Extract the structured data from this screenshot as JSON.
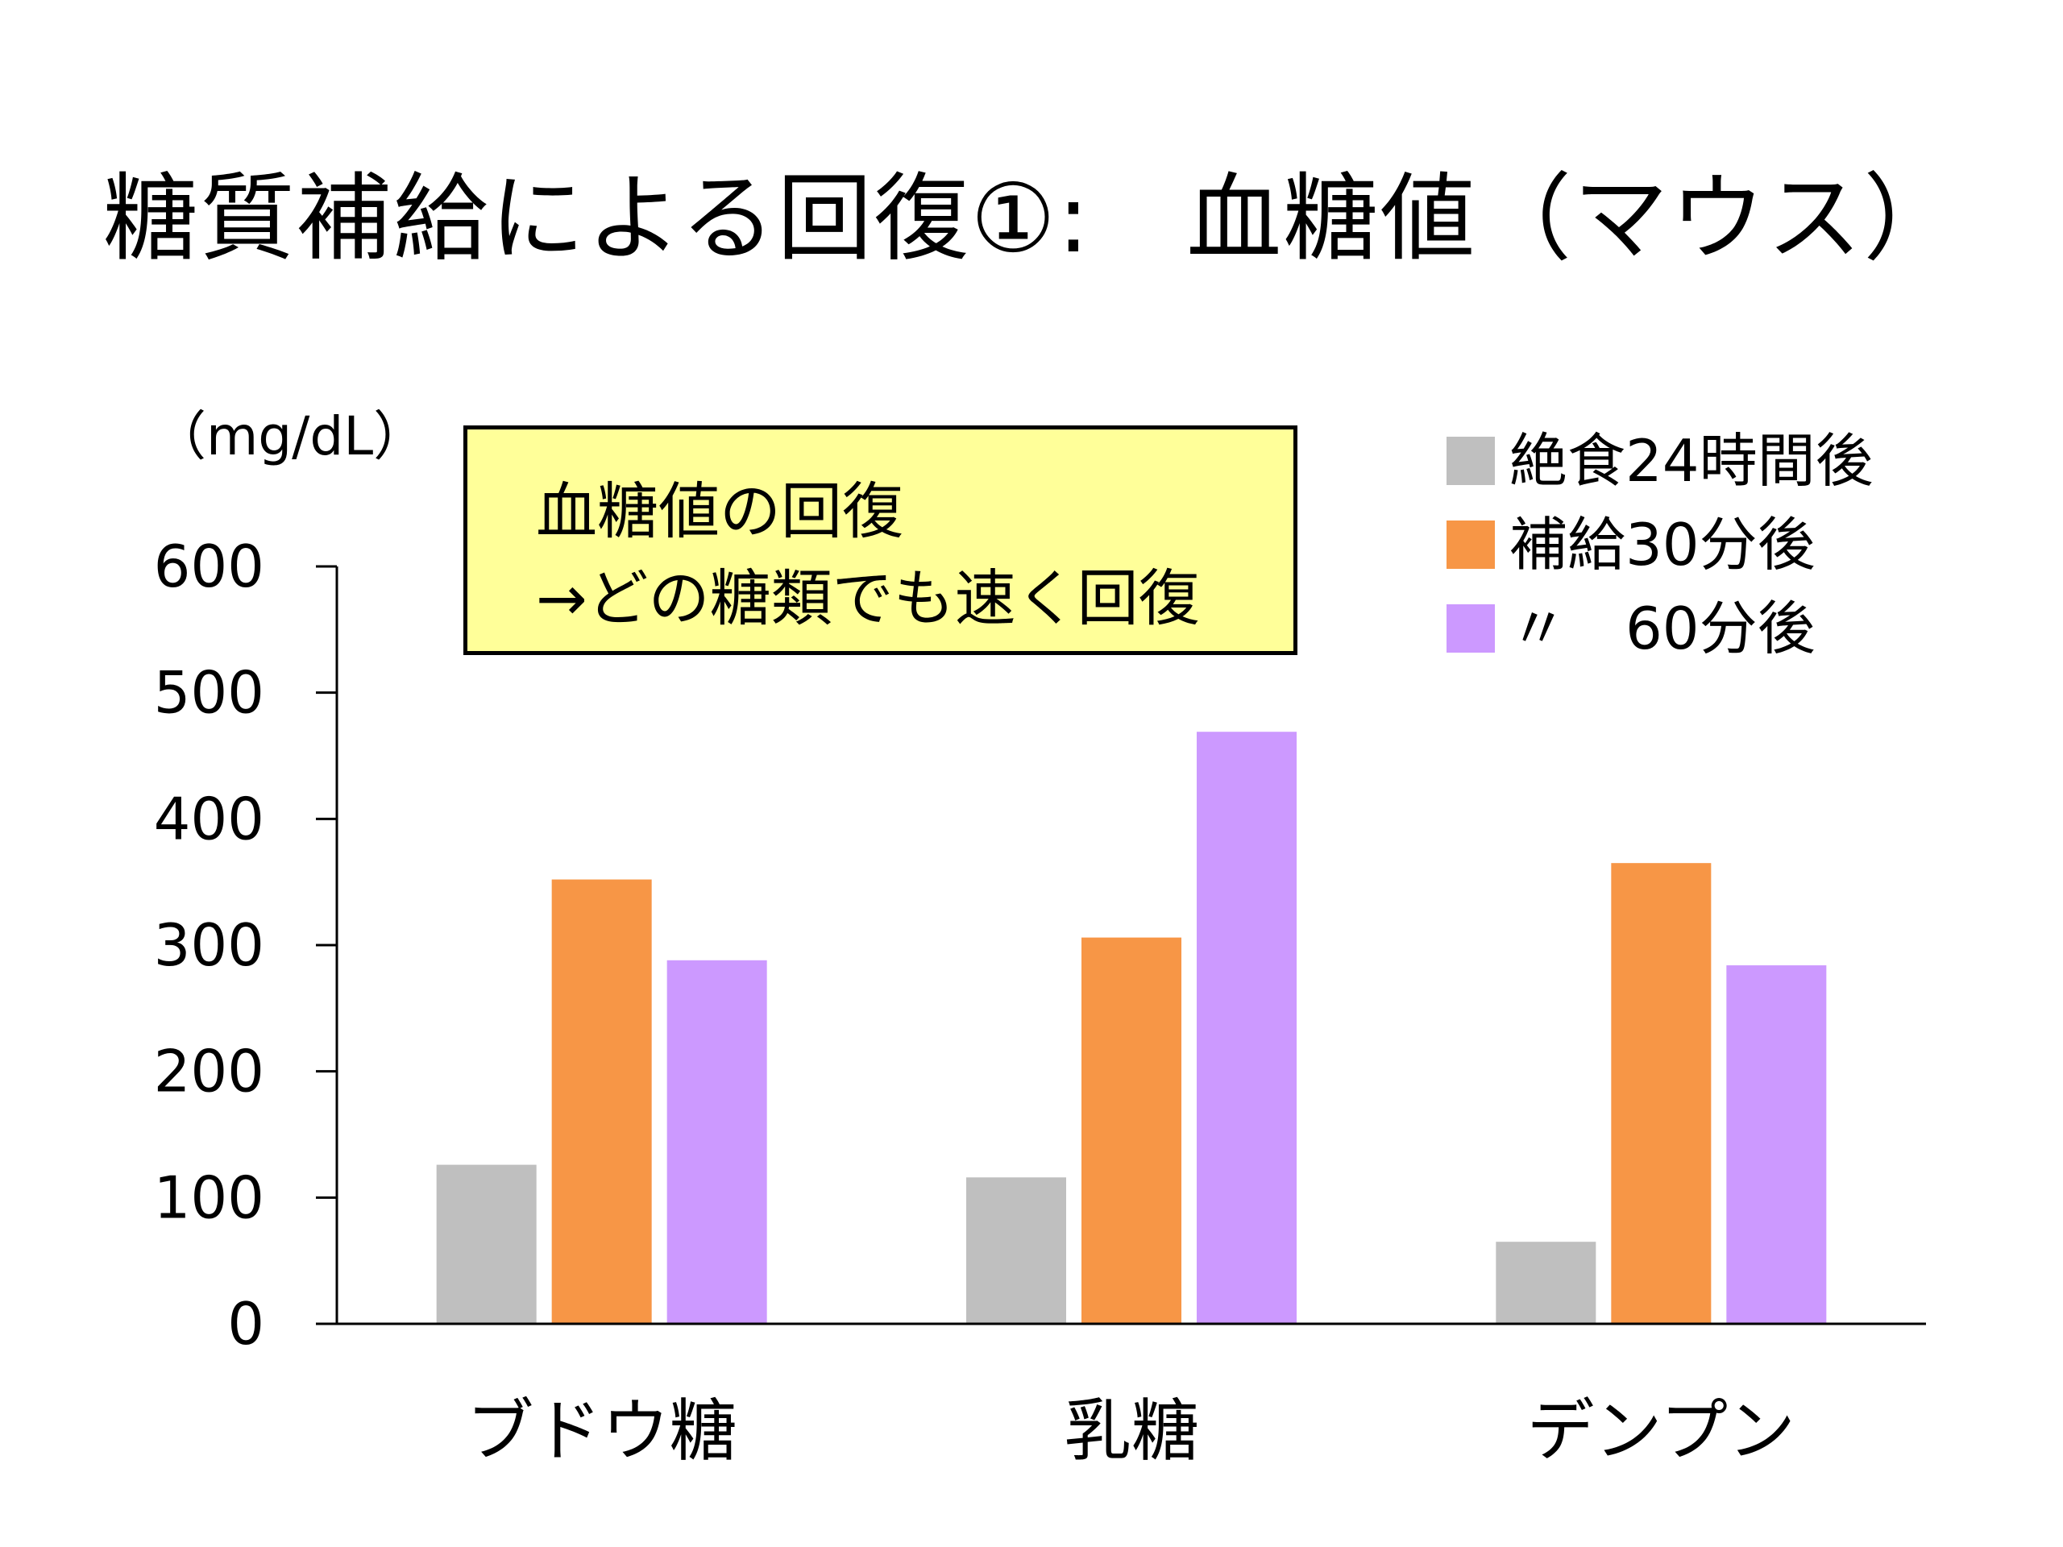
{
  "slide": {
    "title": "糖質補給による回復①:   血糖値（マウス）",
    "unit_label": "（mg/dL）",
    "note": {
      "line1": "血糖値の回復",
      "line2": "→どの糖類でも速く回復"
    }
  },
  "chart_data": {
    "type": "bar",
    "title": "糖質補給による回復①: 血糖値（マウス）",
    "ylabel": "（mg/dL）",
    "xlabel": "",
    "ylim": [
      0,
      600
    ],
    "yticks": [
      "0",
      "100",
      "200",
      "300",
      "400",
      "500",
      "600"
    ],
    "categories": [
      "ブドウ糖",
      "乳糖",
      "デンプン"
    ],
    "series": [
      {
        "name": "絶食24時間後",
        "color": "#bfbfbf",
        "values": [
          126,
          116,
          65
        ]
      },
      {
        "name": "補給30分後",
        "color": "#f79646",
        "values": [
          352,
          306,
          365
        ]
      },
      {
        "name": "〃　60分後",
        "color": "#cc99ff",
        "values": [
          288,
          469,
          284
        ]
      }
    ],
    "legend_position": "top-right",
    "grid": false
  }
}
